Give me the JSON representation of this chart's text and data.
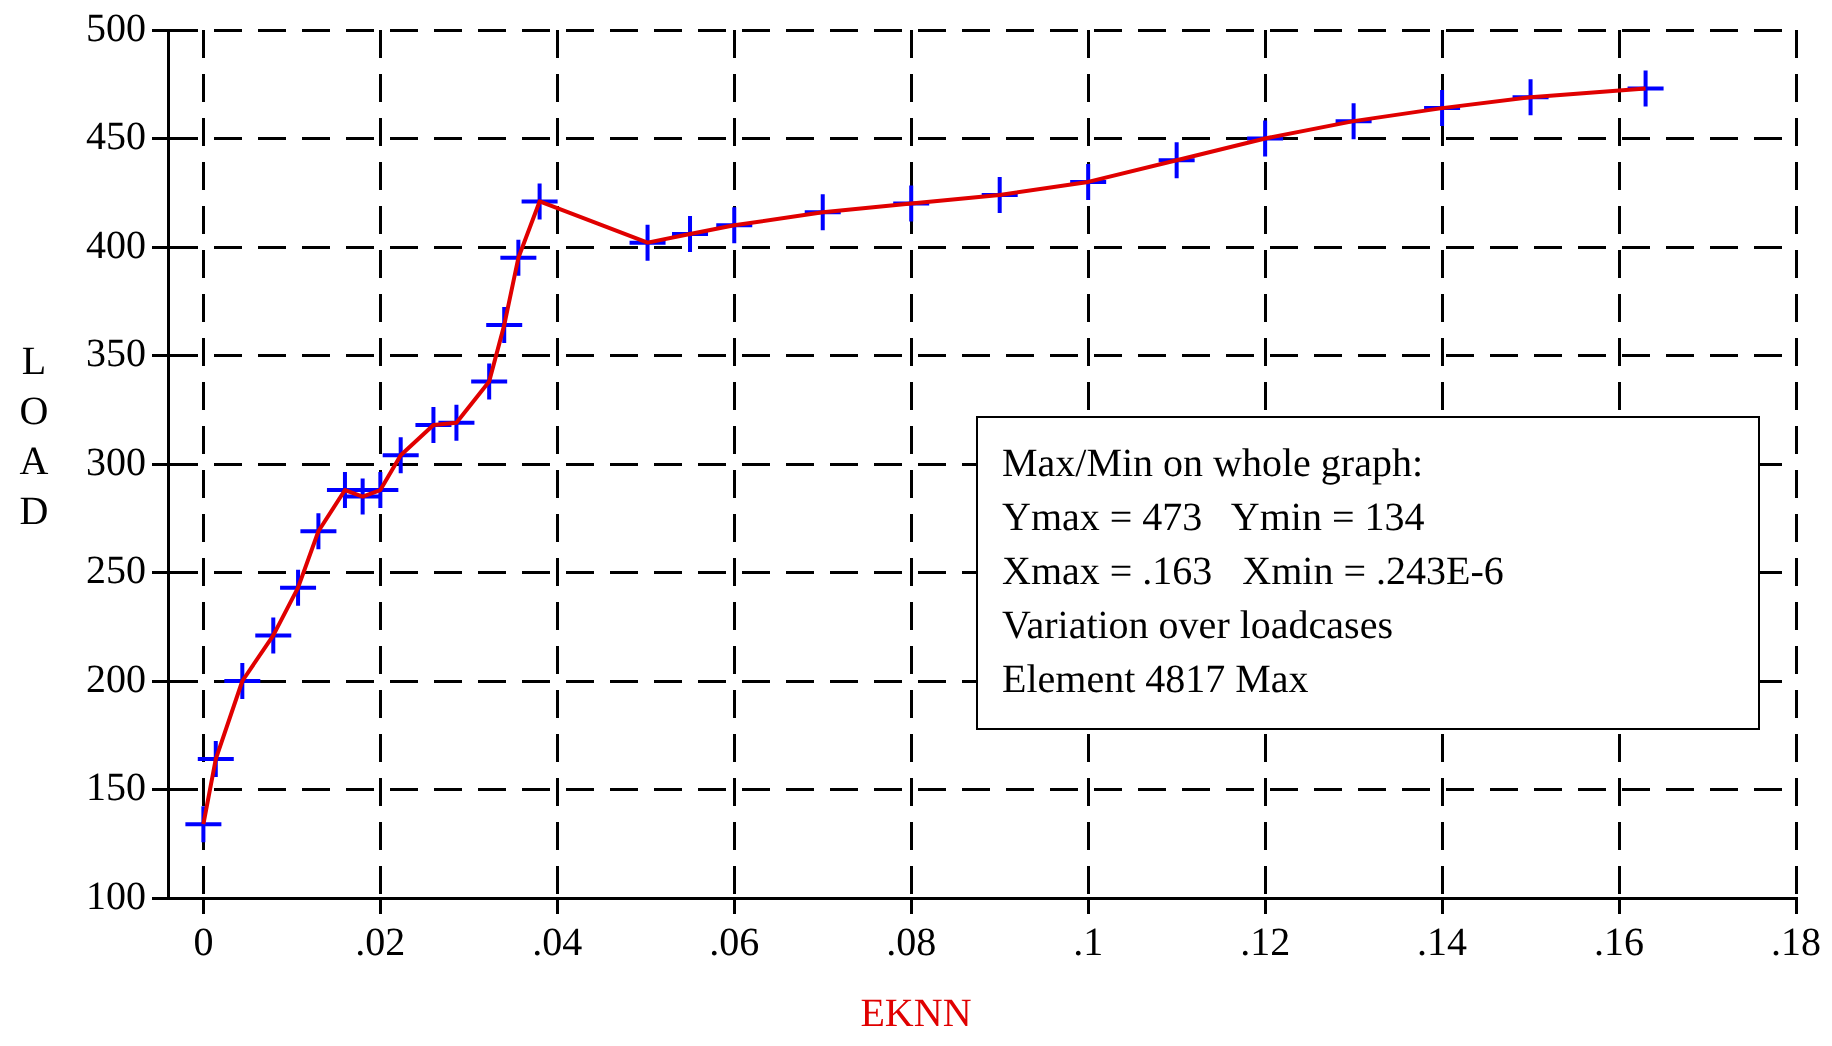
{
  "chart_data": {
    "type": "line",
    "xlabel": "EKNN",
    "ylabel": "LOAD",
    "x": [
      0,
      0.0014,
      0.0044,
      0.0079,
      0.0107,
      0.013,
      0.016,
      0.018,
      0.02,
      0.0223,
      0.026,
      0.0286,
      0.0323,
      0.034,
      0.0356,
      0.038,
      0.0502,
      0.055,
      0.06,
      0.07,
      0.08,
      0.09,
      0.1,
      0.11,
      0.12,
      0.13,
      0.14,
      0.15,
      0.163
    ],
    "series": [
      {
        "type": "line",
        "color": "#e00000",
        "marker": "none",
        "values": [
          134,
          164,
          200,
          221,
          243,
          269,
          288,
          285,
          288,
          304,
          318,
          319,
          338,
          364,
          395,
          421,
          402,
          406,
          410,
          416,
          420,
          424,
          430,
          440,
          450,
          458,
          464,
          469,
          473
        ]
      },
      {
        "type": "scatter",
        "color": "#0000ff",
        "marker": "cross",
        "values": [
          134,
          164,
          200,
          221,
          243,
          269,
          288,
          285,
          288,
          304,
          318,
          319,
          338,
          364,
          395,
          421,
          402,
          406,
          410,
          416,
          420,
          424,
          430,
          440,
          450,
          458,
          464,
          469,
          473
        ]
      }
    ],
    "xlim": [
      -0.004,
      0.18
    ],
    "xticks": [
      {
        "value": 0,
        "label": "0"
      },
      {
        "value": 0.02,
        "label": ".02"
      },
      {
        "value": 0.04,
        "label": ".04"
      },
      {
        "value": 0.06,
        "label": ".06"
      },
      {
        "value": 0.08,
        "label": ".08"
      },
      {
        "value": 0.1,
        "label": ".1"
      },
      {
        "value": 0.12,
        "label": ".12"
      },
      {
        "value": 0.14,
        "label": ".14"
      },
      {
        "value": 0.16,
        "label": ".16"
      },
      {
        "value": 0.18,
        "label": ".18"
      }
    ],
    "ylim": [
      100,
      500
    ],
    "yticks": [
      100,
      150,
      200,
      250,
      300,
      350,
      400,
      450,
      500
    ],
    "grid": true,
    "legend": false,
    "annotations": [
      "Max/Min on whole graph:",
      "Ymax = 473   Ymin = 134",
      "Xmax = .163   Xmin = .243E-6",
      "Variation over loadcases",
      "Element 4817 Max"
    ]
  }
}
